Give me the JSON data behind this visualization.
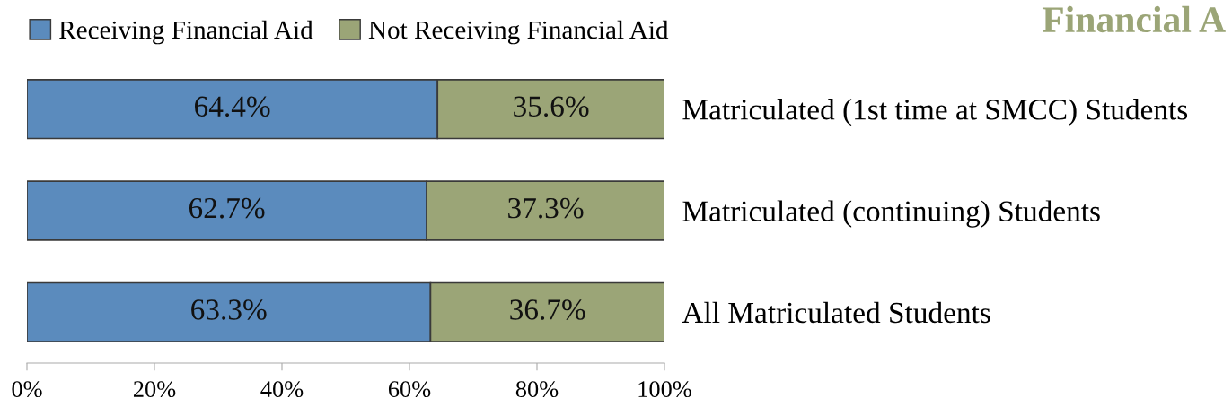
{
  "chart_data": {
    "type": "bar",
    "orientation": "horizontal",
    "stacked": true,
    "title": "Financial A",
    "categories": [
      "Matriculated (1st time at SMCC) Students",
      "Matriculated (continuing) Students",
      "All Matriculated Students"
    ],
    "series": [
      {
        "name": "Receiving Financial Aid",
        "color": "#5b8bbd",
        "values": [
          64.4,
          62.7,
          63.3
        ],
        "value_labels": [
          "64.4%",
          "62.7%",
          "63.3%"
        ]
      },
      {
        "name": "Not Receiving Financial Aid",
        "color": "#9ba577",
        "values": [
          35.6,
          37.3,
          36.7
        ],
        "value_labels": [
          "35.6%",
          "37.3%",
          "36.7%"
        ]
      }
    ],
    "xlim": [
      0,
      100
    ],
    "xticks": [
      {
        "value": 0,
        "label": "0%"
      },
      {
        "value": 20,
        "label": "20%"
      },
      {
        "value": 40,
        "label": "40%"
      },
      {
        "value": 60,
        "label": "60%"
      },
      {
        "value": 80,
        "label": "80%"
      },
      {
        "value": 100,
        "label": "100%"
      }
    ],
    "legend": "top left",
    "grid": false
  }
}
